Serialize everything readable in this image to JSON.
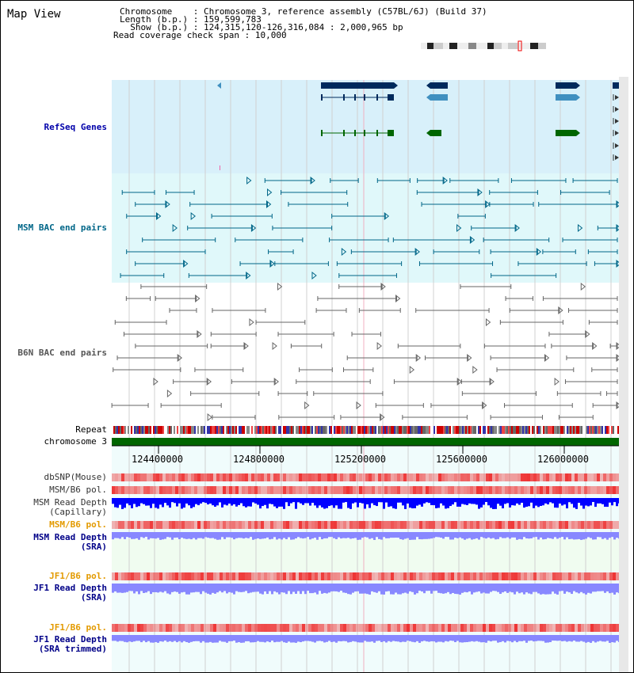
{
  "view_title": "Map View",
  "info": {
    "chromosome_label": "Chromosome",
    "chromosome_value": "Chromosome 3, reference assembly (C57BL/6J) (Build 37)",
    "length_label": "Length (b.p.)",
    "length_value": "159,599,783",
    "show_label": "Show (b.p.)",
    "show_value": "124,315,120-126,316,084 : 2,000,965 bp",
    "coverage_label": "Read coverage check span",
    "coverage_value": "10,000"
  },
  "tracks": {
    "refseq": "RefSeq Genes",
    "msm_bac": "MSM BAC end pairs",
    "b6n_bac": "B6N BAC end pairs",
    "repeat": "Repeat",
    "chromosome": "chromosome 3",
    "dbsnp": "dbSNP(Mouse)",
    "msm_b6_pol_1": "MSM/B6 pol.",
    "msm_read_depth_cap_1": "MSM Read Depth",
    "msm_read_depth_cap_2": "(Capillary)",
    "msm_b6_pol_2": "MSM/B6 pol.",
    "msm_read_depth_sra_1": "MSM Read Depth",
    "msm_read_depth_sra_2": "(SRA)",
    "jf1_b6_pol_1": "JF1/B6 pol.",
    "jf1_read_depth_sra_1": "JF1 Read Depth",
    "jf1_read_depth_sra_2": "(SRA)",
    "jf1_b6_pol_2": "JF1/B6 pol.",
    "jf1_read_depth_trim_1": "JF1 Read Depth",
    "jf1_read_depth_trim_2": "(SRA trimmed)"
  },
  "axis_ticks": [
    "124400000",
    "124800000",
    "125200000",
    "125600000",
    "126000000"
  ],
  "colors": {
    "refseq_bg": "#d8f0fa",
    "msm_bg": "#e0f8fa",
    "b6n_bg": "#ffffff",
    "lower_bg": "#f0fcfc",
    "refseq_dark": "#002a5c",
    "refseq_mid": "#4090c0",
    "gene_green": "#006600",
    "chrom_green": "#006600",
    "msm_line": "#006688",
    "b6n_line": "#666666",
    "depth_blue": "#0000ff",
    "depth_light": "#8888ff",
    "snp_red": "#ee3333"
  }
}
